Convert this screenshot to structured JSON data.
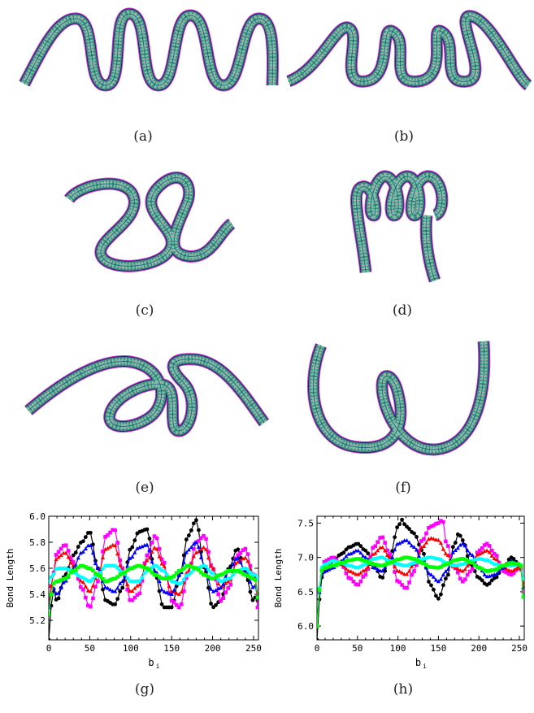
{
  "captions": {
    "a": "(a)",
    "b": "(b)",
    "c": "(c)",
    "d": "(d)",
    "e": "(e)",
    "f": "(f)",
    "g": "(g)",
    "h": "(h)"
  },
  "ribbon_colors": [
    "#1a2a6c",
    "#3c8a7e",
    "#b0b0b0",
    "#5cc7a0",
    "#d22fd0"
  ],
  "chart_data": [
    {
      "type": "line",
      "ylabel": "Bond Length",
      "xlabel": "b",
      "xlabel_sub": "i",
      "xlim": [
        0,
        256
      ],
      "ylim": [
        5.05,
        6.0
      ],
      "xticks": [
        0,
        50,
        100,
        150,
        200,
        250
      ],
      "yticks": [
        5.2,
        5.4,
        5.6,
        5.8,
        6.0
      ],
      "ytick_labels": [
        "5.2",
        "5.4",
        "5.6",
        "5.8",
        "6.0"
      ],
      "grid": false,
      "series": [
        {
          "color": "#000000",
          "marker": "circle",
          "values_at": [
            0,
            5,
            10,
            20,
            30,
            40,
            50,
            60,
            70,
            80,
            90,
            100,
            110,
            120,
            130,
            140,
            150,
            160,
            170,
            180,
            190,
            200,
            210,
            220,
            230,
            240,
            250,
            254,
            256
          ],
          "values": [
            5.05,
            5.45,
            5.35,
            5.55,
            5.7,
            5.8,
            5.88,
            5.6,
            5.35,
            5.32,
            5.45,
            5.75,
            5.88,
            5.9,
            5.55,
            5.3,
            5.3,
            5.55,
            5.85,
            5.97,
            5.6,
            5.3,
            5.35,
            5.6,
            5.75,
            5.55,
            5.35,
            5.4,
            5.3
          ]
        },
        {
          "color": "#ff00ff",
          "marker": "square",
          "values_at": [
            0,
            5,
            10,
            20,
            30,
            40,
            50,
            60,
            70,
            80,
            90,
            100,
            110,
            120,
            130,
            140,
            150,
            160,
            170,
            180,
            190,
            200,
            210,
            220,
            230,
            240,
            250,
            254,
            256
          ],
          "values": [
            5.3,
            5.55,
            5.72,
            5.78,
            5.65,
            5.45,
            5.3,
            5.5,
            5.85,
            5.9,
            5.6,
            5.35,
            5.4,
            5.7,
            5.85,
            5.65,
            5.35,
            5.3,
            5.55,
            5.8,
            5.85,
            5.6,
            5.35,
            5.45,
            5.7,
            5.75,
            5.55,
            5.5,
            5.1
          ]
        },
        {
          "color": "#ff0000",
          "marker": "triangle",
          "values_at": [
            0,
            5,
            10,
            20,
            30,
            40,
            50,
            60,
            70,
            80,
            90,
            100,
            110,
            120,
            130,
            140,
            150,
            160,
            170,
            180,
            190,
            200,
            210,
            220,
            230,
            240,
            250,
            254,
            256
          ],
          "values": [
            5.3,
            5.55,
            5.68,
            5.72,
            5.62,
            5.5,
            5.42,
            5.55,
            5.75,
            5.78,
            5.58,
            5.42,
            5.47,
            5.66,
            5.76,
            5.62,
            5.42,
            5.4,
            5.58,
            5.72,
            5.76,
            5.6,
            5.45,
            5.5,
            5.65,
            5.68,
            5.55,
            5.5,
            5.3
          ]
        },
        {
          "color": "#0000ff",
          "marker": "triangle",
          "values_at": [
            0,
            5,
            10,
            20,
            30,
            40,
            50,
            60,
            70,
            80,
            90,
            100,
            110,
            120,
            130,
            140,
            150,
            160,
            170,
            180,
            190,
            200,
            210,
            220,
            230,
            240,
            250,
            254,
            256
          ],
          "values": [
            5.3,
            5.45,
            5.4,
            5.5,
            5.6,
            5.72,
            5.78,
            5.6,
            5.45,
            5.42,
            5.5,
            5.68,
            5.76,
            5.78,
            5.58,
            5.42,
            5.4,
            5.55,
            5.74,
            5.8,
            5.62,
            5.42,
            5.45,
            5.58,
            5.68,
            5.58,
            5.45,
            5.48,
            5.3
          ]
        },
        {
          "color": "#00ffff",
          "marker": "circle",
          "values_at": [
            0,
            5,
            10,
            20,
            30,
            40,
            50,
            60,
            70,
            80,
            90,
            100,
            110,
            120,
            130,
            140,
            150,
            160,
            170,
            180,
            190,
            200,
            210,
            220,
            230,
            240,
            250,
            254,
            256
          ],
          "values": [
            5.5,
            5.55,
            5.6,
            5.6,
            5.57,
            5.53,
            5.5,
            5.55,
            5.62,
            5.62,
            5.57,
            5.5,
            5.5,
            5.58,
            5.62,
            5.58,
            5.5,
            5.48,
            5.55,
            5.6,
            5.62,
            5.56,
            5.5,
            5.52,
            5.58,
            5.6,
            5.55,
            5.55,
            5.5
          ]
        },
        {
          "color": "#00ff00",
          "marker": "square",
          "values_at": [
            0,
            5,
            10,
            20,
            30,
            40,
            50,
            60,
            70,
            80,
            90,
            100,
            110,
            120,
            130,
            140,
            150,
            160,
            170,
            180,
            190,
            200,
            210,
            220,
            230,
            240,
            250,
            254,
            256
          ],
          "values": [
            5.25,
            5.48,
            5.5,
            5.52,
            5.58,
            5.62,
            5.6,
            5.55,
            5.5,
            5.52,
            5.56,
            5.6,
            5.62,
            5.6,
            5.55,
            5.52,
            5.53,
            5.58,
            5.62,
            5.6,
            5.55,
            5.52,
            5.55,
            5.58,
            5.58,
            5.55,
            5.52,
            5.5,
            5.25
          ]
        }
      ]
    },
    {
      "type": "line",
      "ylabel": "Bond Length",
      "xlabel": "b",
      "xlabel_sub": "i",
      "xlim": [
        0,
        256
      ],
      "ylim": [
        5.8,
        7.6
      ],
      "xticks": [
        0,
        50,
        100,
        150,
        200,
        250
      ],
      "yticks": [
        6.0,
        6.5,
        7.0,
        7.5
      ],
      "ytick_labels": [
        "6.0",
        "6.5",
        "7.0",
        "7.5"
      ],
      "grid": false,
      "series": [
        {
          "color": "#000000",
          "marker": "circle",
          "values_at": [
            0,
            5,
            10,
            20,
            30,
            40,
            50,
            60,
            70,
            80,
            90,
            100,
            105,
            110,
            120,
            130,
            140,
            150,
            160,
            170,
            175,
            180,
            190,
            200,
            210,
            220,
            230,
            240,
            250,
            254,
            256
          ],
          "values": [
            5.8,
            6.7,
            6.8,
            6.95,
            7.05,
            7.15,
            7.2,
            7.1,
            6.9,
            6.7,
            7.0,
            7.45,
            7.55,
            7.45,
            7.35,
            7.1,
            6.6,
            6.4,
            6.7,
            7.2,
            7.35,
            7.25,
            6.9,
            6.7,
            6.6,
            6.7,
            6.85,
            7.0,
            6.9,
            6.8,
            6.3
          ]
        },
        {
          "color": "#ff00ff",
          "marker": "square",
          "values_at": [
            0,
            5,
            10,
            20,
            30,
            40,
            50,
            60,
            70,
            80,
            90,
            100,
            110,
            120,
            130,
            140,
            150,
            155,
            160,
            170,
            180,
            190,
            200,
            210,
            220,
            230,
            240,
            250,
            254,
            256
          ],
          "values": [
            6.0,
            6.8,
            6.95,
            7.0,
            6.9,
            6.7,
            6.6,
            6.75,
            7.15,
            7.3,
            7.05,
            6.65,
            6.55,
            6.8,
            7.25,
            7.45,
            7.5,
            7.55,
            7.2,
            6.85,
            6.65,
            6.8,
            7.1,
            7.2,
            7.05,
            6.8,
            6.75,
            6.85,
            6.8,
            6.2
          ]
        },
        {
          "color": "#ff0000",
          "marker": "triangle",
          "values_at": [
            0,
            5,
            10,
            20,
            30,
            40,
            50,
            60,
            70,
            80,
            90,
            100,
            110,
            120,
            130,
            140,
            150,
            160,
            170,
            180,
            190,
            200,
            210,
            220,
            230,
            240,
            250,
            254,
            256
          ],
          "values": [
            6.0,
            6.8,
            6.9,
            6.95,
            6.9,
            6.8,
            6.75,
            6.82,
            7.05,
            7.15,
            7.0,
            6.8,
            6.75,
            6.9,
            7.15,
            7.28,
            7.25,
            7.05,
            6.85,
            6.8,
            6.92,
            7.05,
            7.1,
            6.98,
            6.85,
            6.8,
            6.85,
            6.82,
            6.4
          ]
        },
        {
          "color": "#0000ff",
          "marker": "triangle",
          "values_at": [
            0,
            5,
            10,
            20,
            30,
            40,
            50,
            60,
            70,
            80,
            90,
            100,
            110,
            120,
            130,
            140,
            150,
            160,
            170,
            180,
            190,
            200,
            210,
            220,
            230,
            240,
            250,
            254,
            256
          ],
          "values": [
            6.0,
            6.75,
            6.8,
            6.85,
            6.95,
            7.05,
            7.1,
            7.0,
            6.85,
            6.8,
            6.95,
            7.2,
            7.25,
            7.15,
            6.95,
            6.75,
            6.65,
            6.8,
            7.1,
            7.2,
            7.05,
            6.85,
            6.72,
            6.75,
            6.85,
            6.95,
            6.9,
            6.85,
            6.0
          ]
        },
        {
          "color": "#00ffff",
          "marker": "circle",
          "values_at": [
            0,
            5,
            10,
            20,
            30,
            40,
            50,
            60,
            70,
            80,
            90,
            100,
            110,
            120,
            130,
            140,
            150,
            160,
            170,
            180,
            190,
            200,
            210,
            220,
            230,
            240,
            250,
            254,
            256
          ],
          "values": [
            6.0,
            6.85,
            6.9,
            6.95,
            6.92,
            6.88,
            6.85,
            6.9,
            6.98,
            7.0,
            6.95,
            6.9,
            6.88,
            6.92,
            6.98,
            7.0,
            6.98,
            6.92,
            6.88,
            6.9,
            6.95,
            6.98,
            6.96,
            6.9,
            6.88,
            6.88,
            6.9,
            6.88,
            6.5
          ]
        },
        {
          "color": "#00ff00",
          "marker": "square",
          "values_at": [
            0,
            5,
            10,
            20,
            30,
            40,
            50,
            60,
            70,
            80,
            90,
            100,
            110,
            120,
            130,
            140,
            150,
            160,
            170,
            180,
            190,
            200,
            210,
            220,
            230,
            240,
            250,
            254,
            256
          ],
          "values": [
            6.0,
            6.8,
            6.85,
            6.88,
            6.92,
            6.96,
            6.98,
            6.95,
            6.9,
            6.88,
            6.92,
            6.97,
            7.0,
            6.98,
            6.92,
            6.86,
            6.85,
            6.9,
            6.96,
            6.98,
            6.93,
            6.85,
            6.8,
            6.82,
            6.88,
            6.92,
            6.9,
            6.85,
            6.0
          ]
        }
      ]
    }
  ]
}
